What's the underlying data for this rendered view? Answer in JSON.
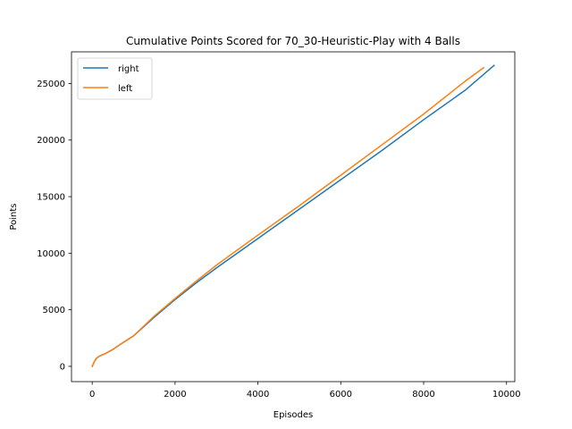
{
  "chart_data": {
    "type": "line",
    "title": "Cumulative Points Scored for 70_30-Heuristic-Play with 4 Balls",
    "xlabel": "Episodes",
    "ylabel": "Points",
    "xlim": [
      -500,
      10200
    ],
    "ylim": [
      -1350,
      27800
    ],
    "xticks": [
      0,
      2000,
      4000,
      6000,
      8000,
      10000
    ],
    "yticks": [
      0,
      5000,
      10000,
      15000,
      20000,
      25000
    ],
    "grid": false,
    "legend_position": "upper-left",
    "series": [
      {
        "name": "right",
        "color": "#1f77b4",
        "x": [
          0,
          50,
          100,
          150,
          200,
          300,
          500,
          700,
          1000,
          1500,
          2000,
          2500,
          3000,
          4000,
          5000,
          6000,
          7000,
          8000,
          9000,
          9700
        ],
        "y": [
          0,
          400,
          700,
          850,
          950,
          1100,
          1500,
          2000,
          2700,
          4350,
          5900,
          7350,
          8700,
          11300,
          13900,
          16500,
          19100,
          21800,
          24400,
          26600
        ]
      },
      {
        "name": "left",
        "color": "#ff7f0e",
        "x": [
          0,
          50,
          100,
          150,
          200,
          300,
          500,
          700,
          1000,
          1500,
          2000,
          2500,
          3000,
          4000,
          5000,
          6000,
          7000,
          8000,
          9000,
          9450
        ],
        "y": [
          0,
          400,
          700,
          850,
          950,
          1100,
          1500,
          2000,
          2700,
          4450,
          6000,
          7500,
          8950,
          11600,
          14200,
          16900,
          19600,
          22300,
          25200,
          26400
        ]
      }
    ]
  }
}
